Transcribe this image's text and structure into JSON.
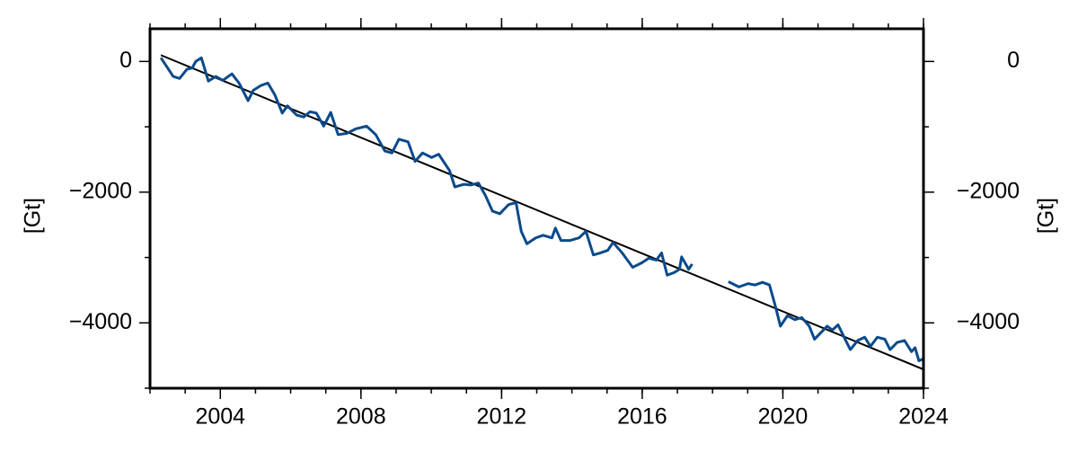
{
  "chart_data": {
    "type": "line",
    "ylabel": "[Gt]",
    "y2label": "[Gt]",
    "xlim": [
      2002,
      2024
    ],
    "xticks": [
      2004,
      2008,
      2012,
      2016,
      2020,
      2024
    ],
    "xminorticks": [
      2002,
      2003,
      2004,
      2005,
      2006,
      2007,
      2008,
      2009,
      2010,
      2011,
      2012,
      2013,
      2014,
      2015,
      2016,
      2017,
      2018,
      2019,
      2020,
      2021,
      2022,
      2023,
      2024
    ],
    "ylim": [
      -5000,
      500
    ],
    "yticks": [
      {
        "value": -4000,
        "label": "−4000"
      },
      {
        "value": -2000,
        "label": "−2000"
      },
      0
    ],
    "yminorticks": [
      -5000,
      -3000,
      -1000
    ],
    "y2lim": [
      -5000,
      500
    ],
    "y2ticks": [
      {
        "value": -4000,
        "label": "−4000"
      },
      {
        "value": -2000,
        "label": "−2000"
      },
      0
    ],
    "series": [
      {
        "color": "#0b4a8b",
        "x": [
          2002.31,
          2002.66,
          2002.84,
          2003.05,
          2003.2,
          2003.3,
          2003.46,
          2003.66,
          2003.87,
          2004.07,
          2004.33,
          2004.53,
          2004.79,
          2004.94,
          2005.15,
          2005.35,
          2005.55,
          2005.76,
          2005.91,
          2006.17,
          2006.37,
          2006.55,
          2006.73,
          2006.94,
          2007.14,
          2007.35,
          2007.6,
          2007.86,
          2008.16,
          2008.42,
          2008.68,
          2008.88,
          2009.08,
          2009.34,
          2009.54,
          2009.75,
          2010.01,
          2010.21,
          2010.52,
          2010.67,
          2010.93,
          2011.13,
          2011.34,
          2011.54,
          2011.74,
          2011.95,
          2012.2,
          2012.41,
          2012.56,
          2012.72,
          2012.97,
          2013.18,
          2013.43,
          2013.53,
          2013.69,
          2013.94,
          2014.2,
          2014.4,
          2014.61,
          2014.81,
          2015.02,
          2015.17,
          2015.43,
          2015.73,
          2015.99,
          2016.19,
          2016.4,
          2016.55,
          2016.71,
          2016.91,
          2017.06,
          2017.12,
          2017.32,
          2017.42,
          2018.0,
          2018.45,
          2018.75,
          2019.01,
          2019.21,
          2019.42,
          2019.62,
          2019.78,
          2019.93,
          2020.13,
          2020.34,
          2020.54,
          2020.75,
          2020.9,
          2021.1,
          2021.26,
          2021.41,
          2021.57,
          2021.77,
          2021.92,
          2022.13,
          2022.33,
          2022.49,
          2022.69,
          2022.9,
          2023.05,
          2023.25,
          2023.46,
          2023.66,
          2023.76,
          2023.87,
          2024.0
        ],
        "values": [
          55,
          -230,
          -260,
          -120,
          -100,
          0,
          55,
          -300,
          -230,
          -290,
          -190,
          -330,
          -600,
          -440,
          -370,
          -330,
          -510,
          -790,
          -680,
          -820,
          -850,
          -770,
          -790,
          -990,
          -780,
          -1120,
          -1100,
          -1030,
          -990,
          -1120,
          -1370,
          -1400,
          -1190,
          -1230,
          -1530,
          -1400,
          -1470,
          -1420,
          -1670,
          -1920,
          -1880,
          -1890,
          -1860,
          -2050,
          -2290,
          -2330,
          -2190,
          -2160,
          -2600,
          -2790,
          -2700,
          -2660,
          -2700,
          -2550,
          -2740,
          -2740,
          -2700,
          -2600,
          -2960,
          -2930,
          -2890,
          -2770,
          -2930,
          -3150,
          -3080,
          -3010,
          -3040,
          -2930,
          -3270,
          -3230,
          -3180,
          -2990,
          -3180,
          -3100,
          null,
          -3370,
          -3450,
          -3400,
          -3420,
          -3380,
          -3420,
          -3730,
          -4050,
          -3890,
          -3950,
          -3920,
          -4050,
          -4250,
          -4140,
          -4050,
          -4110,
          -4030,
          -4250,
          -4410,
          -4270,
          -4220,
          -4360,
          -4220,
          -4250,
          -4410,
          -4300,
          -4270,
          -4440,
          -4380,
          -4580,
          -4550
        ]
      },
      {
        "color": "#000000",
        "x": [
          2002.31,
          2024.0
        ],
        "values": [
          96,
          -4712
        ]
      }
    ]
  }
}
